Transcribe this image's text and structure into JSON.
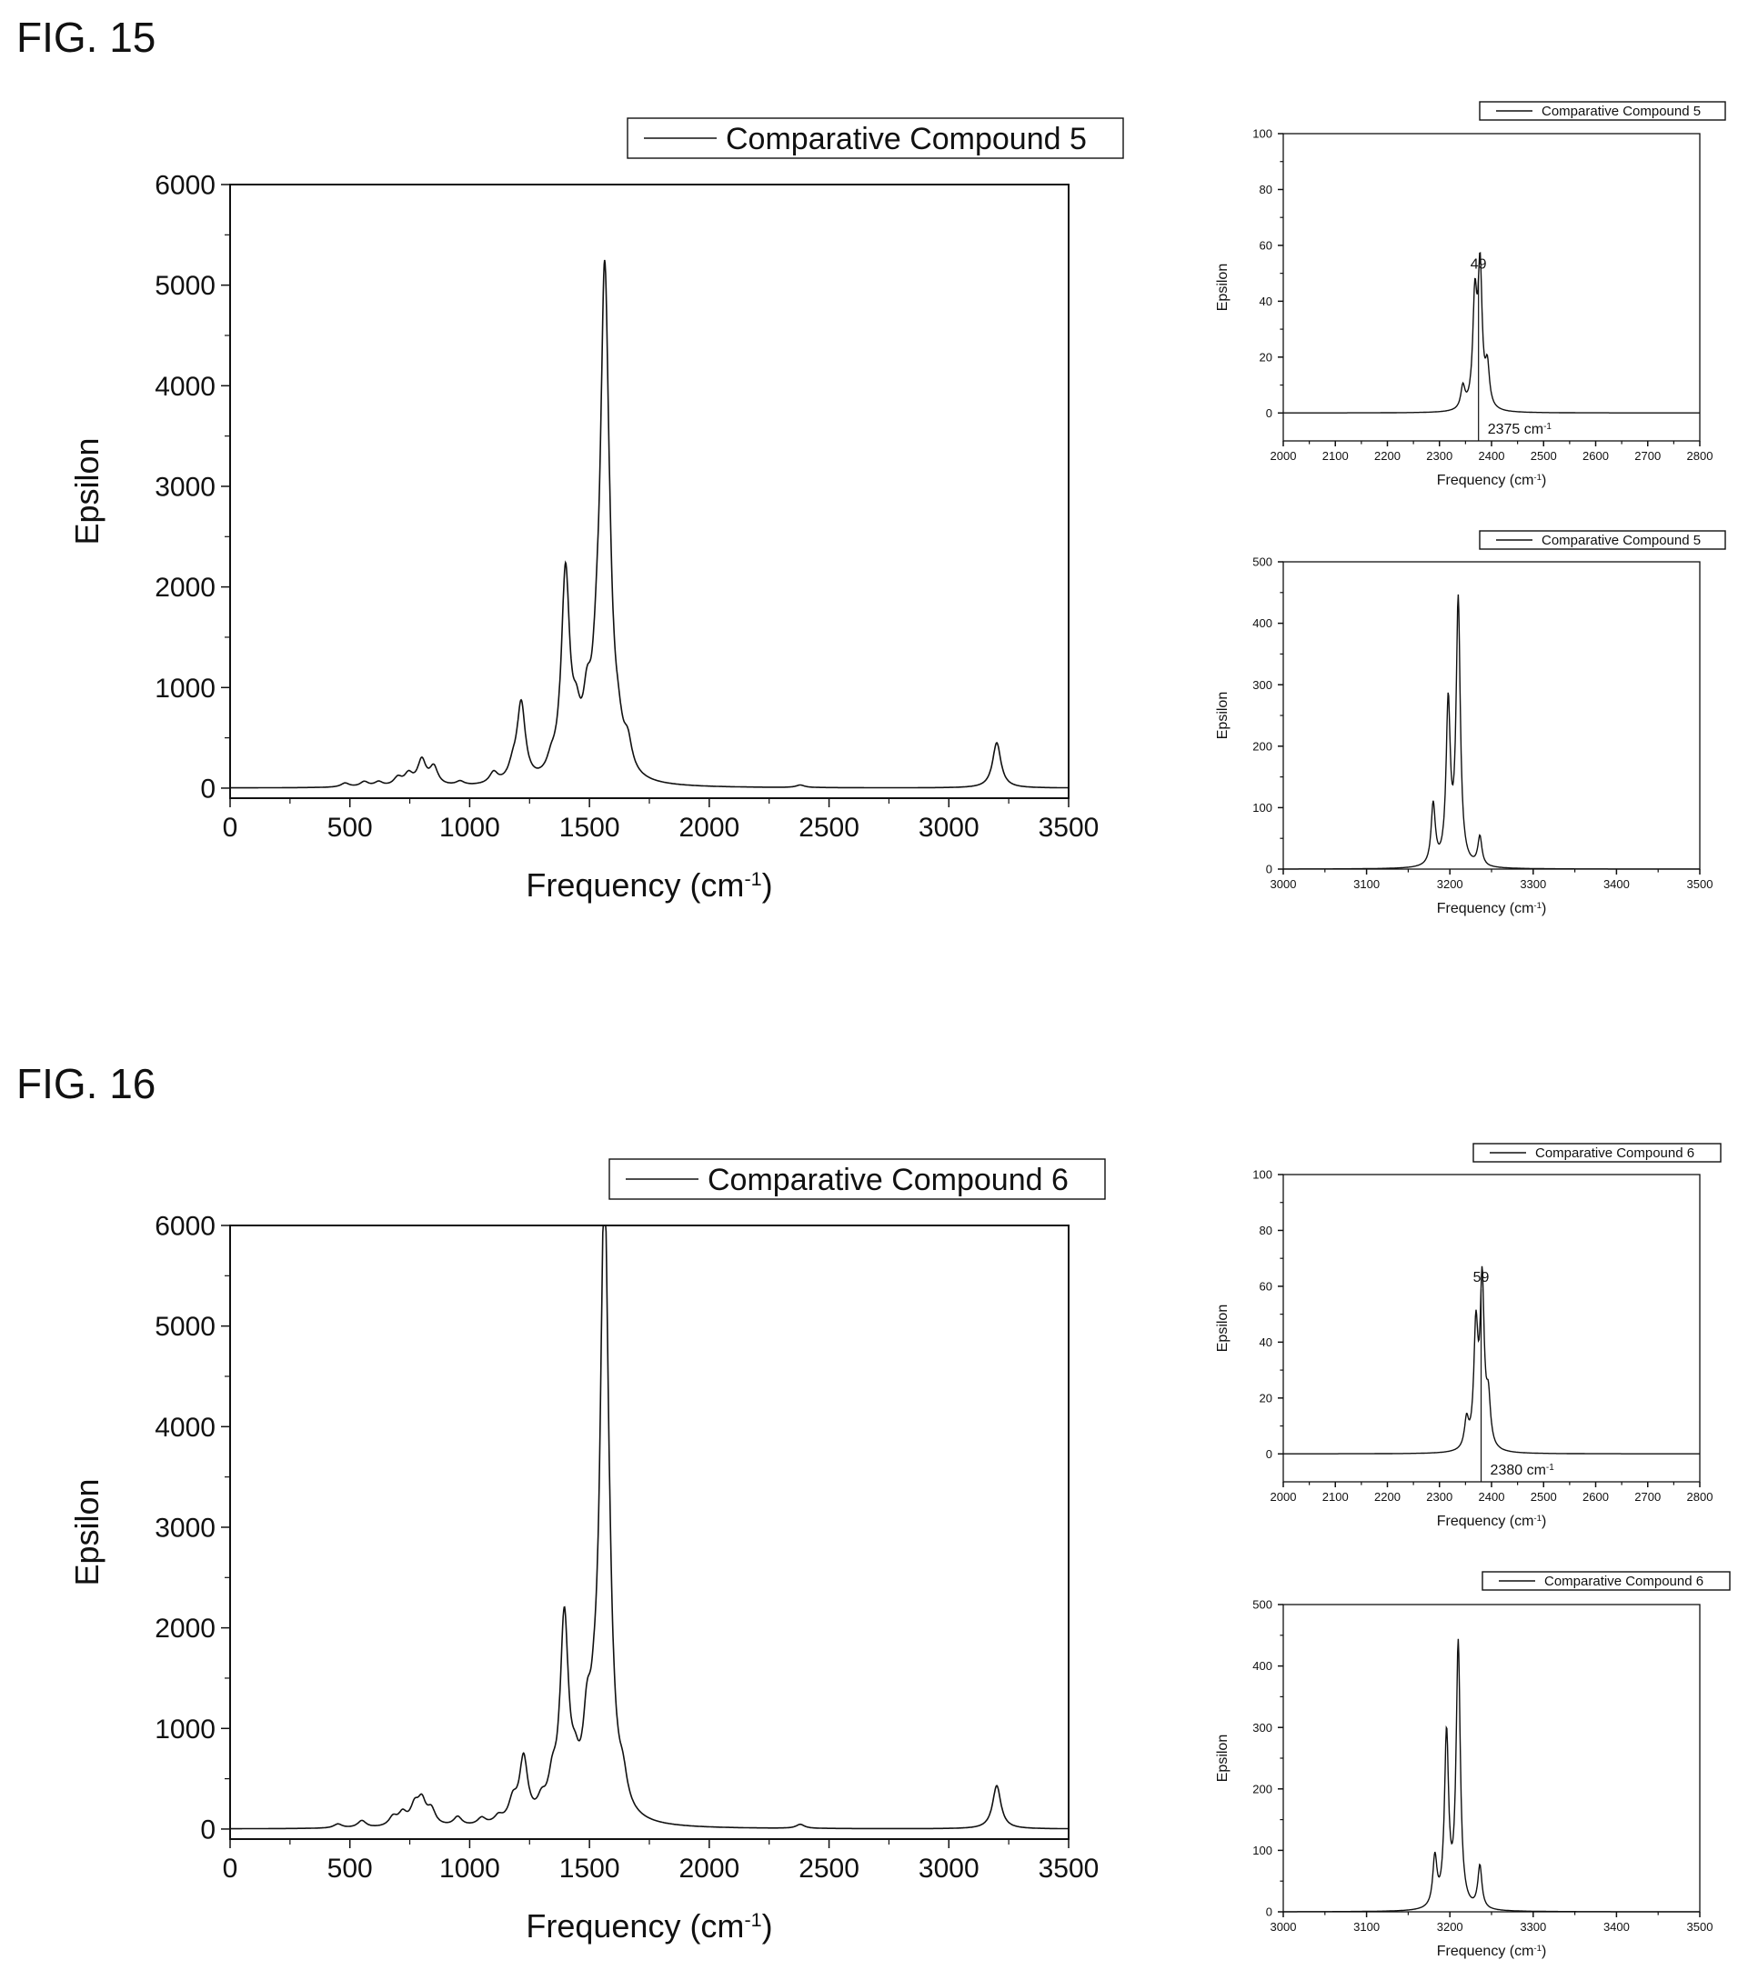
{
  "figures": [
    {
      "label": "FIG. 15"
    },
    {
      "label": "FIG. 16"
    }
  ],
  "chart_data": [
    {
      "type": "line",
      "figure": "FIG. 15",
      "panel": "main",
      "xlabel": "Frequency (cm-1)",
      "ylabel": "Epsilon",
      "xlim": [
        0,
        3500
      ],
      "ylim": [
        -100,
        6000
      ],
      "xticks": [
        0,
        500,
        1000,
        1500,
        2000,
        2500,
        3000,
        3500
      ],
      "yticks": [
        0,
        1000,
        2000,
        3000,
        4000,
        5000,
        6000
      ],
      "legend": "top-right",
      "grid": false,
      "series": [
        {
          "name": "Comparative Compound 5",
          "peaks": [
            [
              480,
              40
            ],
            [
              560,
              50
            ],
            [
              620,
              45
            ],
            [
              700,
              80
            ],
            [
              745,
              110
            ],
            [
              800,
              250
            ],
            [
              850,
              180
            ],
            [
              960,
              40
            ],
            [
              1100,
              110
            ],
            [
              1180,
              130
            ],
            [
              1215,
              780
            ],
            [
              1340,
              120
            ],
            [
              1400,
              2020
            ],
            [
              1445,
              380
            ],
            [
              1490,
              520
            ],
            [
              1530,
              540
            ],
            [
              1563,
              4600
            ],
            [
              1580,
              600
            ],
            [
              1620,
              240
            ],
            [
              1660,
              260
            ],
            [
              2380,
              25
            ],
            [
              3200,
              450
            ]
          ]
        }
      ],
      "annotations": []
    },
    {
      "type": "line",
      "figure": "FIG. 15",
      "panel": "inset-top",
      "xlabel": "Frequency (cm-1)",
      "ylabel": "Epsilon",
      "xlim": [
        2000,
        2800
      ],
      "ylim": [
        -10,
        100
      ],
      "xticks": [
        2000,
        2100,
        2200,
        2300,
        2400,
        2500,
        2600,
        2700,
        2800
      ],
      "yticks": [
        0,
        20,
        40,
        60,
        80,
        100
      ],
      "legend": "top-right",
      "grid": false,
      "series": [
        {
          "name": "Comparative Compound 5",
          "peaks": [
            [
              2345,
              8
            ],
            [
              2368,
              38
            ],
            [
              2378,
              49
            ],
            [
              2392,
              14
            ]
          ]
        }
      ],
      "annotations": [
        {
          "text": "49",
          "x": 2375,
          "y": 49
        },
        {
          "text": "2375 cm",
          "sup": "-1",
          "x": 2375
        }
      ]
    },
    {
      "type": "line",
      "figure": "FIG. 15",
      "panel": "inset-bottom",
      "xlabel": "Frequency (cm-1)",
      "ylabel": "Epsilon",
      "xlim": [
        3000,
        3500
      ],
      "ylim": [
        0,
        500
      ],
      "xticks": [
        3000,
        3100,
        3200,
        3300,
        3400,
        3500
      ],
      "yticks": [
        0,
        100,
        200,
        300,
        400,
        500
      ],
      "legend": "top-right",
      "grid": false,
      "series": [
        {
          "name": "Comparative Compound 5",
          "peaks": [
            [
              3180,
              100
            ],
            [
              3198,
              260
            ],
            [
              3210,
              430
            ],
            [
              3236,
              48
            ]
          ]
        }
      ],
      "annotations": []
    },
    {
      "type": "line",
      "figure": "FIG. 16",
      "panel": "main",
      "xlabel": "Frequency (cm-1)",
      "ylabel": "Epsilon",
      "xlim": [
        0,
        3500
      ],
      "ylim": [
        -100,
        6000
      ],
      "xticks": [
        0,
        500,
        1000,
        1500,
        2000,
        2500,
        3000,
        3500
      ],
      "yticks": [
        0,
        1000,
        2000,
        3000,
        4000,
        5000,
        6000
      ],
      "legend": "top-right",
      "grid": false,
      "series": [
        {
          "name": "Comparative Compound 6",
          "peaks": [
            [
              450,
              40
            ],
            [
              550,
              70
            ],
            [
              680,
              90
            ],
            [
              720,
              120
            ],
            [
              770,
              180
            ],
            [
              800,
              230
            ],
            [
              840,
              150
            ],
            [
              950,
              90
            ],
            [
              1050,
              70
            ],
            [
              1120,
              70
            ],
            [
              1180,
              200
            ],
            [
              1225,
              630
            ],
            [
              1300,
              150
            ],
            [
              1345,
              300
            ],
            [
              1395,
              1950
            ],
            [
              1440,
              280
            ],
            [
              1490,
              690
            ],
            [
              1520,
              400
            ],
            [
              1562,
              6000
            ],
            [
              1580,
              500
            ],
            [
              1640,
              250
            ],
            [
              2380,
              40
            ],
            [
              3200,
              430
            ]
          ]
        }
      ],
      "annotations": []
    },
    {
      "type": "line",
      "figure": "FIG. 16",
      "panel": "inset-top",
      "xlabel": "Frequency (cm-1)",
      "ylabel": "Epsilon",
      "xlim": [
        2000,
        2800
      ],
      "ylim": [
        -10,
        100
      ],
      "xticks": [
        2000,
        2100,
        2200,
        2300,
        2400,
        2500,
        2600,
        2700,
        2800
      ],
      "yticks": [
        0,
        20,
        40,
        60,
        80,
        100
      ],
      "legend": "top-right",
      "grid": false,
      "series": [
        {
          "name": "Comparative Compound 6",
          "peaks": [
            [
              2352,
              10
            ],
            [
              2370,
              42
            ],
            [
              2382,
              59
            ],
            [
              2394,
              16
            ]
          ]
        }
      ],
      "annotations": [
        {
          "text": "59",
          "x": 2380,
          "y": 59
        },
        {
          "text": "2380 cm",
          "sup": "-1",
          "x": 2380
        }
      ]
    },
    {
      "type": "line",
      "figure": "FIG. 16",
      "panel": "inset-bottom",
      "xlabel": "Frequency (cm-1)",
      "ylabel": "Epsilon",
      "xlim": [
        3000,
        3500
      ],
      "ylim": [
        0,
        500
      ],
      "xticks": [
        3000,
        3100,
        3200,
        3300,
        3400,
        3500
      ],
      "yticks": [
        0,
        100,
        200,
        300,
        400,
        500
      ],
      "legend": "top-right",
      "grid": false,
      "series": [
        {
          "name": "Comparative Compound 6",
          "peaks": [
            [
              3182,
              80
            ],
            [
              3196,
              280
            ],
            [
              3210,
              430
            ],
            [
              3236,
              70
            ]
          ]
        }
      ],
      "annotations": []
    }
  ]
}
